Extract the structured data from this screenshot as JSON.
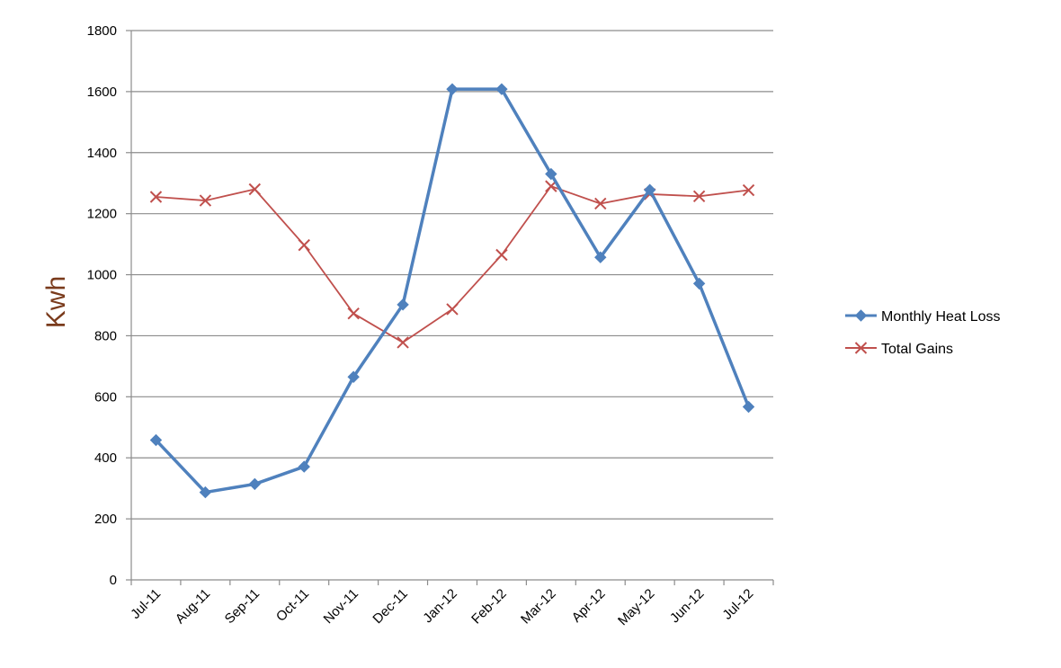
{
  "chart_data": {
    "type": "line",
    "title": "",
    "xlabel": "",
    "ylabel": "Kwh",
    "ylim": [
      0,
      1800
    ],
    "yticks": [
      0,
      200,
      400,
      600,
      800,
      1000,
      1200,
      1400,
      1600,
      1800
    ],
    "grid": "horizontal",
    "legend_position": "right",
    "categories": [
      "Jul-11",
      "Aug-11",
      "Sep-11",
      "Oct-11",
      "Nov-11",
      "Dec-11",
      "Jan-12",
      "Feb-12",
      "Mar-12",
      "Apr-12",
      "May-12",
      "Jun-12",
      "Jul-12"
    ],
    "series": [
      {
        "name": "Monthly Heat Loss",
        "color": "#4f81bd",
        "marker": "diamond",
        "values": [
          458,
          287,
          314,
          371,
          665,
          902,
          1608,
          1608,
          1330,
          1057,
          1278,
          971,
          567
        ]
      },
      {
        "name": "Total Gains",
        "color": "#c0504d",
        "marker": "x",
        "values": [
          1255,
          1243,
          1280,
          1097,
          873,
          778,
          887,
          1065,
          1290,
          1233,
          1264,
          1257,
          1277
        ]
      }
    ]
  }
}
